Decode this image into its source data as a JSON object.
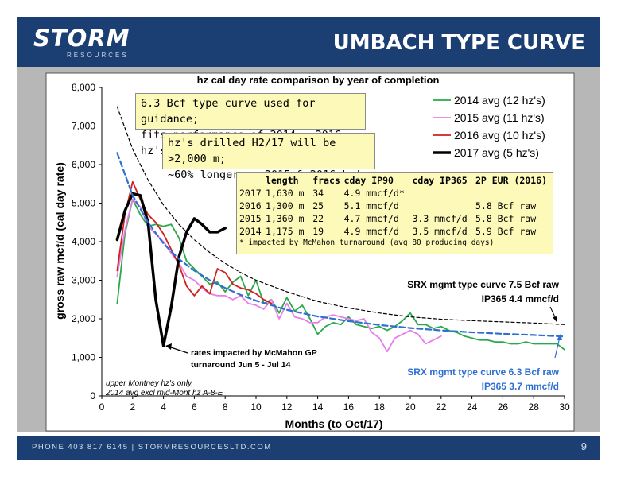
{
  "header": {
    "logo": "STORM",
    "logo_sub": "RESOURCES",
    "title": "UMBACH TYPE CURVE"
  },
  "footer": {
    "text": "PHONE 403 817 6145  |  STORMRESOURCESLTD.COM",
    "page_number": "9"
  },
  "colors": {
    "header_bg": "#1b3f73",
    "series_2014": "#2aa84a",
    "series_2015": "#e87ee8",
    "series_2016": "#d11f1f",
    "series_2017": "#000000",
    "type_curve_75": "#000000",
    "type_curve_63": "#2f6fd1",
    "note_box": "#fdf9b8"
  },
  "annotations": {
    "box1_line1": "6.3 Bcf type curve used for guidance;",
    "box1_line2": "fits performance of 2014 - 2016 hz's",
    "box2_line1": "hz's drilled H2/17 will be >2,000 m;",
    "box2_line2": "~60% longer vs 2015 & 2016 hz's",
    "table_headers": [
      "",
      "length",
      "fracs",
      "cday IP90",
      "cday IP365",
      "2P EUR (2016)"
    ],
    "table_rows": [
      [
        "2017",
        "1,630 m",
        "34",
        "4.9 mmcf/d*",
        "",
        ""
      ],
      [
        "2016",
        "1,300 m",
        "25",
        "5.1 mmcf/d",
        "",
        "5.8 Bcf raw"
      ],
      [
        "2015",
        "1,360 m",
        "22",
        "4.7 mmcf/d",
        "3.3 mmcf/d",
        "5.8 Bcf raw"
      ],
      [
        "2014",
        "1,175 m",
        "19",
        "4.9 mmcf/d",
        "3.5 mmcf/d",
        "5.9 Bcf raw"
      ]
    ],
    "table_footnote": "* impacted by McMahon turnaround (avg 80 producing days)",
    "srx75_line1": "SRX mgmt type curve 7.5 Bcf raw",
    "srx75_line2": "IP365 4.4 mmcf/d",
    "srx63_line1": "SRX mgmt type curve 6.3 Bcf raw",
    "srx63_line2": "IP365 3.7 mmcf/d",
    "mcmahon_line1": "rates impacted by McMahon GP",
    "mcmahon_line2": "turnaround Jun 5 - Jul 14",
    "montney_line1": "upper Montney hz's only,",
    "montney_line2": "2014 avg excl mid-Mont hz A-8-E"
  },
  "chart_data": {
    "type": "line",
    "title": "hz cal day rate comparison by year of completion",
    "xlabel": "Months (to Oct/17)",
    "ylabel": "gross raw mcf/d (cal day rate)",
    "xlim": [
      0,
      30
    ],
    "ylim": [
      0,
      8000
    ],
    "x_ticks": [
      0,
      2,
      4,
      6,
      8,
      10,
      12,
      14,
      16,
      18,
      20,
      22,
      24,
      26,
      28,
      30
    ],
    "y_ticks": [
      0,
      1000,
      2000,
      3000,
      4000,
      5000,
      6000,
      7000,
      8000
    ],
    "y_tick_labels": [
      "0",
      "1,000",
      "2,000",
      "3,000",
      "4,000",
      "5,000",
      "6,000",
      "7,000",
      "8,000"
    ],
    "grid": false,
    "legend_position": "top-right",
    "series": [
      {
        "name": "2014 avg (12 hz's)",
        "color": "#2aa84a",
        "width": 1.8,
        "dash": "",
        "x": [
          1,
          1.5,
          2,
          2.5,
          3,
          3.5,
          4,
          4.5,
          5,
          5.5,
          6,
          6.5,
          7,
          7.5,
          8,
          8.5,
          9,
          9.5,
          10,
          10.5,
          11,
          11.5,
          12,
          12.5,
          13,
          13.5,
          14,
          14.5,
          15,
          15.5,
          16,
          16.5,
          17,
          17.5,
          18,
          18.5,
          19,
          19.5,
          20,
          20.5,
          21,
          21.5,
          22,
          22.5,
          23,
          23.5,
          24,
          24.5,
          25,
          25.5,
          26,
          26.5,
          27,
          27.5,
          28,
          28.5,
          29,
          29.5,
          30
        ],
        "y": [
          2400,
          4200,
          5100,
          4700,
          4400,
          4450,
          4400,
          4450,
          4100,
          3500,
          3300,
          3100,
          2900,
          2950,
          2700,
          2950,
          3100,
          2600,
          3000,
          2400,
          2500,
          2150,
          2550,
          2200,
          2350,
          2000,
          1600,
          1800,
          1900,
          1850,
          2050,
          1850,
          1800,
          1750,
          1800,
          1700,
          1800,
          1950,
          2150,
          1850,
          1850,
          1750,
          1800,
          1700,
          1650,
          1550,
          1500,
          1450,
          1450,
          1400,
          1400,
          1350,
          1350,
          1400,
          1350,
          1350,
          1350,
          1350,
          1200
        ]
      },
      {
        "name": "2015 avg (11 hz's)",
        "color": "#e87ee8",
        "width": 1.8,
        "dash": "",
        "x": [
          1,
          1.5,
          2,
          2.5,
          3,
          3.5,
          4,
          4.5,
          5,
          5.5,
          6,
          6.5,
          7,
          7.5,
          8,
          8.5,
          9,
          9.5,
          10,
          10.5,
          11,
          11.5,
          12,
          12.5,
          13,
          13.5,
          14,
          14.5,
          15,
          15.5,
          16,
          16.5,
          17,
          17.5,
          18,
          18.5,
          19,
          19.5,
          20,
          20.5,
          21,
          21.5,
          22
        ],
        "y": [
          3100,
          4300,
          5100,
          4900,
          4400,
          4200,
          4000,
          3700,
          3450,
          3100,
          3000,
          2800,
          2650,
          2600,
          2600,
          2500,
          2600,
          2400,
          2350,
          2250,
          2500,
          2000,
          2400,
          2050,
          2000,
          1900,
          1900,
          2050,
          2100,
          2050,
          2000,
          1950,
          2000,
          1650,
          1500,
          1150,
          1500,
          1600,
          1700,
          1600,
          1350,
          1450,
          1550
        ]
      },
      {
        "name": "2016 avg (10 hz's)",
        "color": "#d11f1f",
        "width": 1.8,
        "dash": "",
        "x": [
          1,
          1.5,
          2,
          2.5,
          3,
          3.5,
          4,
          4.5,
          5,
          5.5,
          6,
          6.5,
          7,
          7.5,
          8,
          8.5,
          9,
          9.5,
          10,
          10.5,
          11
        ],
        "y": [
          3250,
          4700,
          5550,
          5100,
          4700,
          4500,
          4200,
          3800,
          3400,
          2850,
          2600,
          2850,
          2650,
          3300,
          3200,
          2900,
          2800,
          2750,
          2650,
          2500,
          2400
        ]
      },
      {
        "name": "2017 avg (5 hz's)",
        "color": "#000000",
        "width": 3.5,
        "dash": "",
        "x": [
          1,
          1.5,
          2,
          2.5,
          3,
          3.5,
          4,
          4.5,
          5,
          5.5,
          6,
          6.5,
          7,
          7.5,
          8
        ],
        "y": [
          4050,
          4800,
          5250,
          5200,
          4500,
          2500,
          1300,
          2300,
          3600,
          4250,
          4600,
          4450,
          4250,
          4250,
          4350
        ]
      },
      {
        "name": "SRX mgmt type curve 7.5 Bcf raw",
        "color": "#000000",
        "width": 1.2,
        "dash": "4,3",
        "x": [
          1,
          2,
          3,
          4,
          5,
          6,
          7,
          8,
          9,
          10,
          12,
          14,
          16,
          18,
          20,
          22,
          24,
          26,
          28,
          30
        ],
        "y": [
          7500,
          6400,
          5600,
          4950,
          4450,
          4050,
          3720,
          3440,
          3200,
          3000,
          2700,
          2450,
          2280,
          2150,
          2050,
          1990,
          1950,
          1920,
          1890,
          1850
        ]
      },
      {
        "name": "SRX mgmt type curve 6.3 Bcf raw",
        "color": "#2f6fd1",
        "width": 2.2,
        "dash": "7,4",
        "x": [
          1,
          2,
          3,
          4,
          5,
          6,
          7,
          8,
          9,
          10,
          12,
          14,
          16,
          18,
          20,
          22,
          24,
          26,
          28,
          30
        ],
        "y": [
          6300,
          5200,
          4500,
          3950,
          3550,
          3250,
          3000,
          2800,
          2620,
          2470,
          2230,
          2060,
          1940,
          1840,
          1760,
          1700,
          1650,
          1610,
          1580,
          1540
        ]
      }
    ]
  }
}
